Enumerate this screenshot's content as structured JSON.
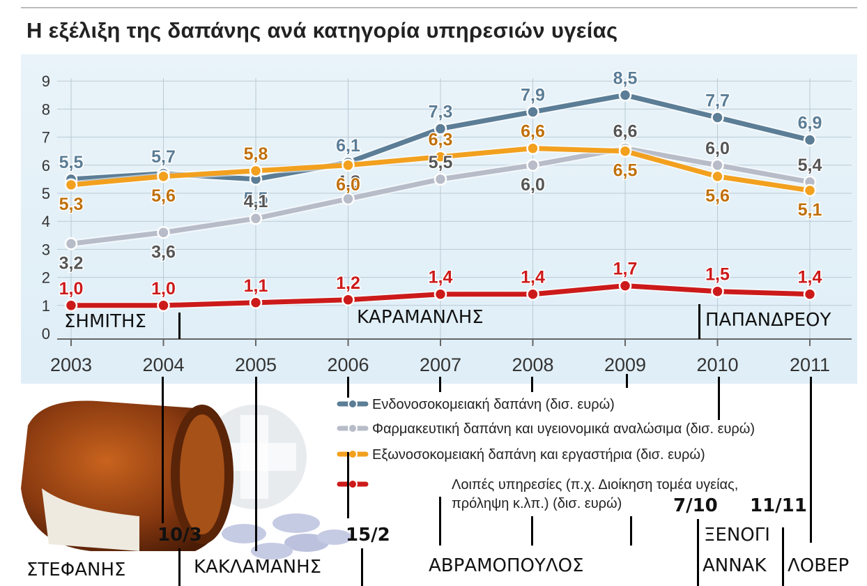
{
  "title": "Η εξέλιξη της δαπάνης ανά κατηγορία υπηρεσιών υγείας",
  "chart_data": {
    "type": "line",
    "title": "Η εξέλιξη της δαπάνης ανά κατηγορία υπηρεσιών υγείας",
    "xlabel": "",
    "ylabel": "",
    "x": [
      "2003",
      "2004",
      "2005",
      "2006",
      "2007",
      "2008",
      "2009",
      "2010",
      "2011"
    ],
    "y_ticks": [
      "0",
      "1",
      "2",
      "3",
      "4",
      "5",
      "6",
      "7",
      "8",
      "9"
    ],
    "ylim": [
      0,
      9
    ],
    "grid": true,
    "legend_position": "bottom-right",
    "series": [
      {
        "name": "Ενδονοσοκομειακή δαπάνη (δισ. ευρώ)",
        "color": "#5b7d96",
        "label_color": "#5b7d96",
        "values": [
          5.5,
          5.7,
          5.5,
          6.1,
          7.3,
          7.9,
          8.5,
          7.7,
          6.9
        ],
        "labels": [
          "5,5",
          "5,7",
          "5,5",
          "6,1",
          "7,3",
          "7,9",
          "8,5",
          "7,7",
          "6,9"
        ]
      },
      {
        "name": "Φαρμακευτική δαπάνη και υγειονομικά αναλώσιμα (δισ. ευρώ)",
        "color": "#b7bcc8",
        "label_color": "#555555",
        "values": [
          3.2,
          3.6,
          4.1,
          4.8,
          5.5,
          6.0,
          6.6,
          6.0,
          5.4
        ],
        "labels": [
          "3,2",
          "3,6",
          "4,1",
          "4,8",
          "5,5",
          "6,0",
          "6,6",
          "6,0",
          "5,4"
        ]
      },
      {
        "name": "Εξωνοσοκομειακή δαπάνη και εργαστήρια (δισ. ευρώ)",
        "color": "#f2a01e",
        "label_color": "#c0700a",
        "values": [
          5.3,
          5.6,
          5.8,
          6.0,
          6.3,
          6.6,
          6.5,
          5.6,
          5.1
        ],
        "labels": [
          "5,3",
          "5,6",
          "5,8",
          "6,0",
          "6,3",
          "6,6",
          "6,5",
          "5,6",
          "5,1"
        ]
      },
      {
        "name": "Λοιπές υπηρεσίες (π.χ. Διοίκηση τομέα υγείας, πρόληψη κ.λπ.) (δισ. ευρώ)",
        "color": "#cc1a1a",
        "label_color": "#cc1a1a",
        "values": [
          1.0,
          1.0,
          1.1,
          1.2,
          1.4,
          1.4,
          1.7,
          1.5,
          1.4
        ],
        "labels": [
          "1,0",
          "1,0",
          "1,1",
          "1,2",
          "1,4",
          "1,4",
          "1,7",
          "1,5",
          "1,4"
        ]
      }
    ],
    "legend": [
      "Ενδονοσοκομειακή δαπάνη (δισ. ευρώ)",
      "Φαρμακευτική δαπάνη και υγειονομικά αναλώσιμα (δισ. ευρώ)",
      "Εξωνοσοκομειακή δαπάνη και εργαστήρια (δισ. ευρώ)",
      "Λοιπές υπηρεσίες (π.χ. Διοίκηση τομέα υγείας,",
      "πρόληψη κ.λπ.) (δισ. ευρώ)"
    ]
  },
  "annotations": {
    "simitis": "ΣΗΜΙΤΗΣ",
    "karamanlis": "ΚΑΡΑΜΑΝΛΗΣ",
    "papandreou": "ΠΑΠΑΝΔΡΕΟΥ",
    "stefanis": "ΣΤΕΦΑΝΗΣ",
    "kaklamanis": "ΚΑΚΛΑΜΑΝΗΣ",
    "avramopoulos": "ΑΒΡΑΜΟΠΟΥΛΟΣ",
    "xenogi": "ΞΕΝΟΓΙ",
    "annak": "ΑΝΝΑΚ",
    "lover": "ΛΟΒΕΡ",
    "date_10_3": "10/3",
    "date_15_2": "15/2",
    "date_7_10": "7/10",
    "date_11_11": "11/11"
  }
}
